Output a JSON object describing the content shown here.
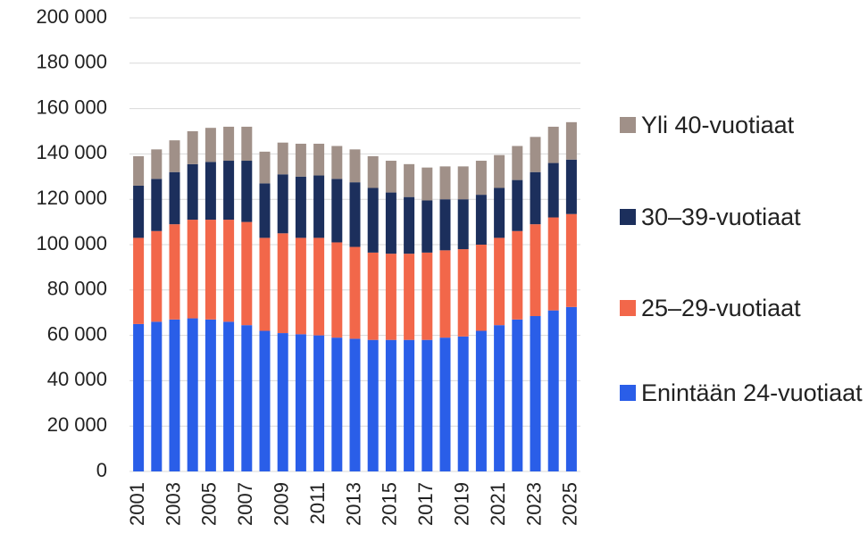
{
  "chart_data": {
    "type": "stacked_bar",
    "categories": [
      "2001",
      null,
      "2003",
      null,
      "2005",
      null,
      "2007",
      null,
      "2009",
      null,
      "2011",
      null,
      "2013",
      null,
      "2015",
      null,
      "2017",
      null,
      "2019",
      null,
      "2021",
      null,
      "2023",
      null,
      "2025"
    ],
    "series": [
      {
        "name": "Enintään 24-vuotiaat",
        "color": "#2a5ee8",
        "values": [
          65000,
          66000,
          67000,
          67500,
          67000,
          66000,
          64500,
          62000,
          61000,
          60500,
          60000,
          59000,
          58500,
          58000,
          58000,
          58000,
          58000,
          59000,
          59500,
          62000,
          64500,
          67000,
          68500,
          71000,
          72500
        ]
      },
      {
        "name": "25–29-vuotiaat",
        "color": "#f2674a",
        "values": [
          38000,
          40000,
          42000,
          43500,
          44000,
          45000,
          45500,
          41000,
          44000,
          42500,
          43000,
          42000,
          40500,
          38500,
          38000,
          38000,
          38500,
          38500,
          38500,
          38000,
          38500,
          39000,
          40500,
          41000,
          41000
        ]
      },
      {
        "name": "30–39-vuotiaat",
        "color": "#1c2f5c",
        "values": [
          23000,
          23000,
          23000,
          24500,
          25500,
          26000,
          27000,
          24000,
          26000,
          27000,
          27500,
          28000,
          28500,
          28500,
          27000,
          25000,
          23000,
          22500,
          22000,
          22000,
          22000,
          22500,
          23000,
          24000,
          24000
        ]
      },
      {
        "name": "Yli 40-vuotiaat",
        "color": "#a09088",
        "values": [
          13000,
          13000,
          14000,
          14500,
          15000,
          15000,
          15000,
          14000,
          14000,
          14500,
          14000,
          14500,
          14500,
          14000,
          14000,
          14500,
          14500,
          14500,
          14500,
          15000,
          14500,
          15000,
          15500,
          16000,
          16500
        ]
      }
    ],
    "ylim": [
      0,
      200000
    ],
    "yticks": [
      0,
      {
        "value": 20000,
        "label": "20 000"
      },
      {
        "value": 40000,
        "label": "40 000"
      },
      {
        "value": 60000,
        "label": "60 000"
      },
      {
        "value": 80000,
        "label": "80 000"
      },
      {
        "value": 100000,
        "label": "100 000"
      },
      {
        "value": 120000,
        "label": "120 000"
      },
      {
        "value": 140000,
        "label": "140 000"
      },
      {
        "value": 160000,
        "label": "160 000"
      },
      {
        "value": 180000,
        "label": "180 000"
      },
      {
        "value": 200000,
        "label": "200 000"
      }
    ],
    "grid": true
  }
}
